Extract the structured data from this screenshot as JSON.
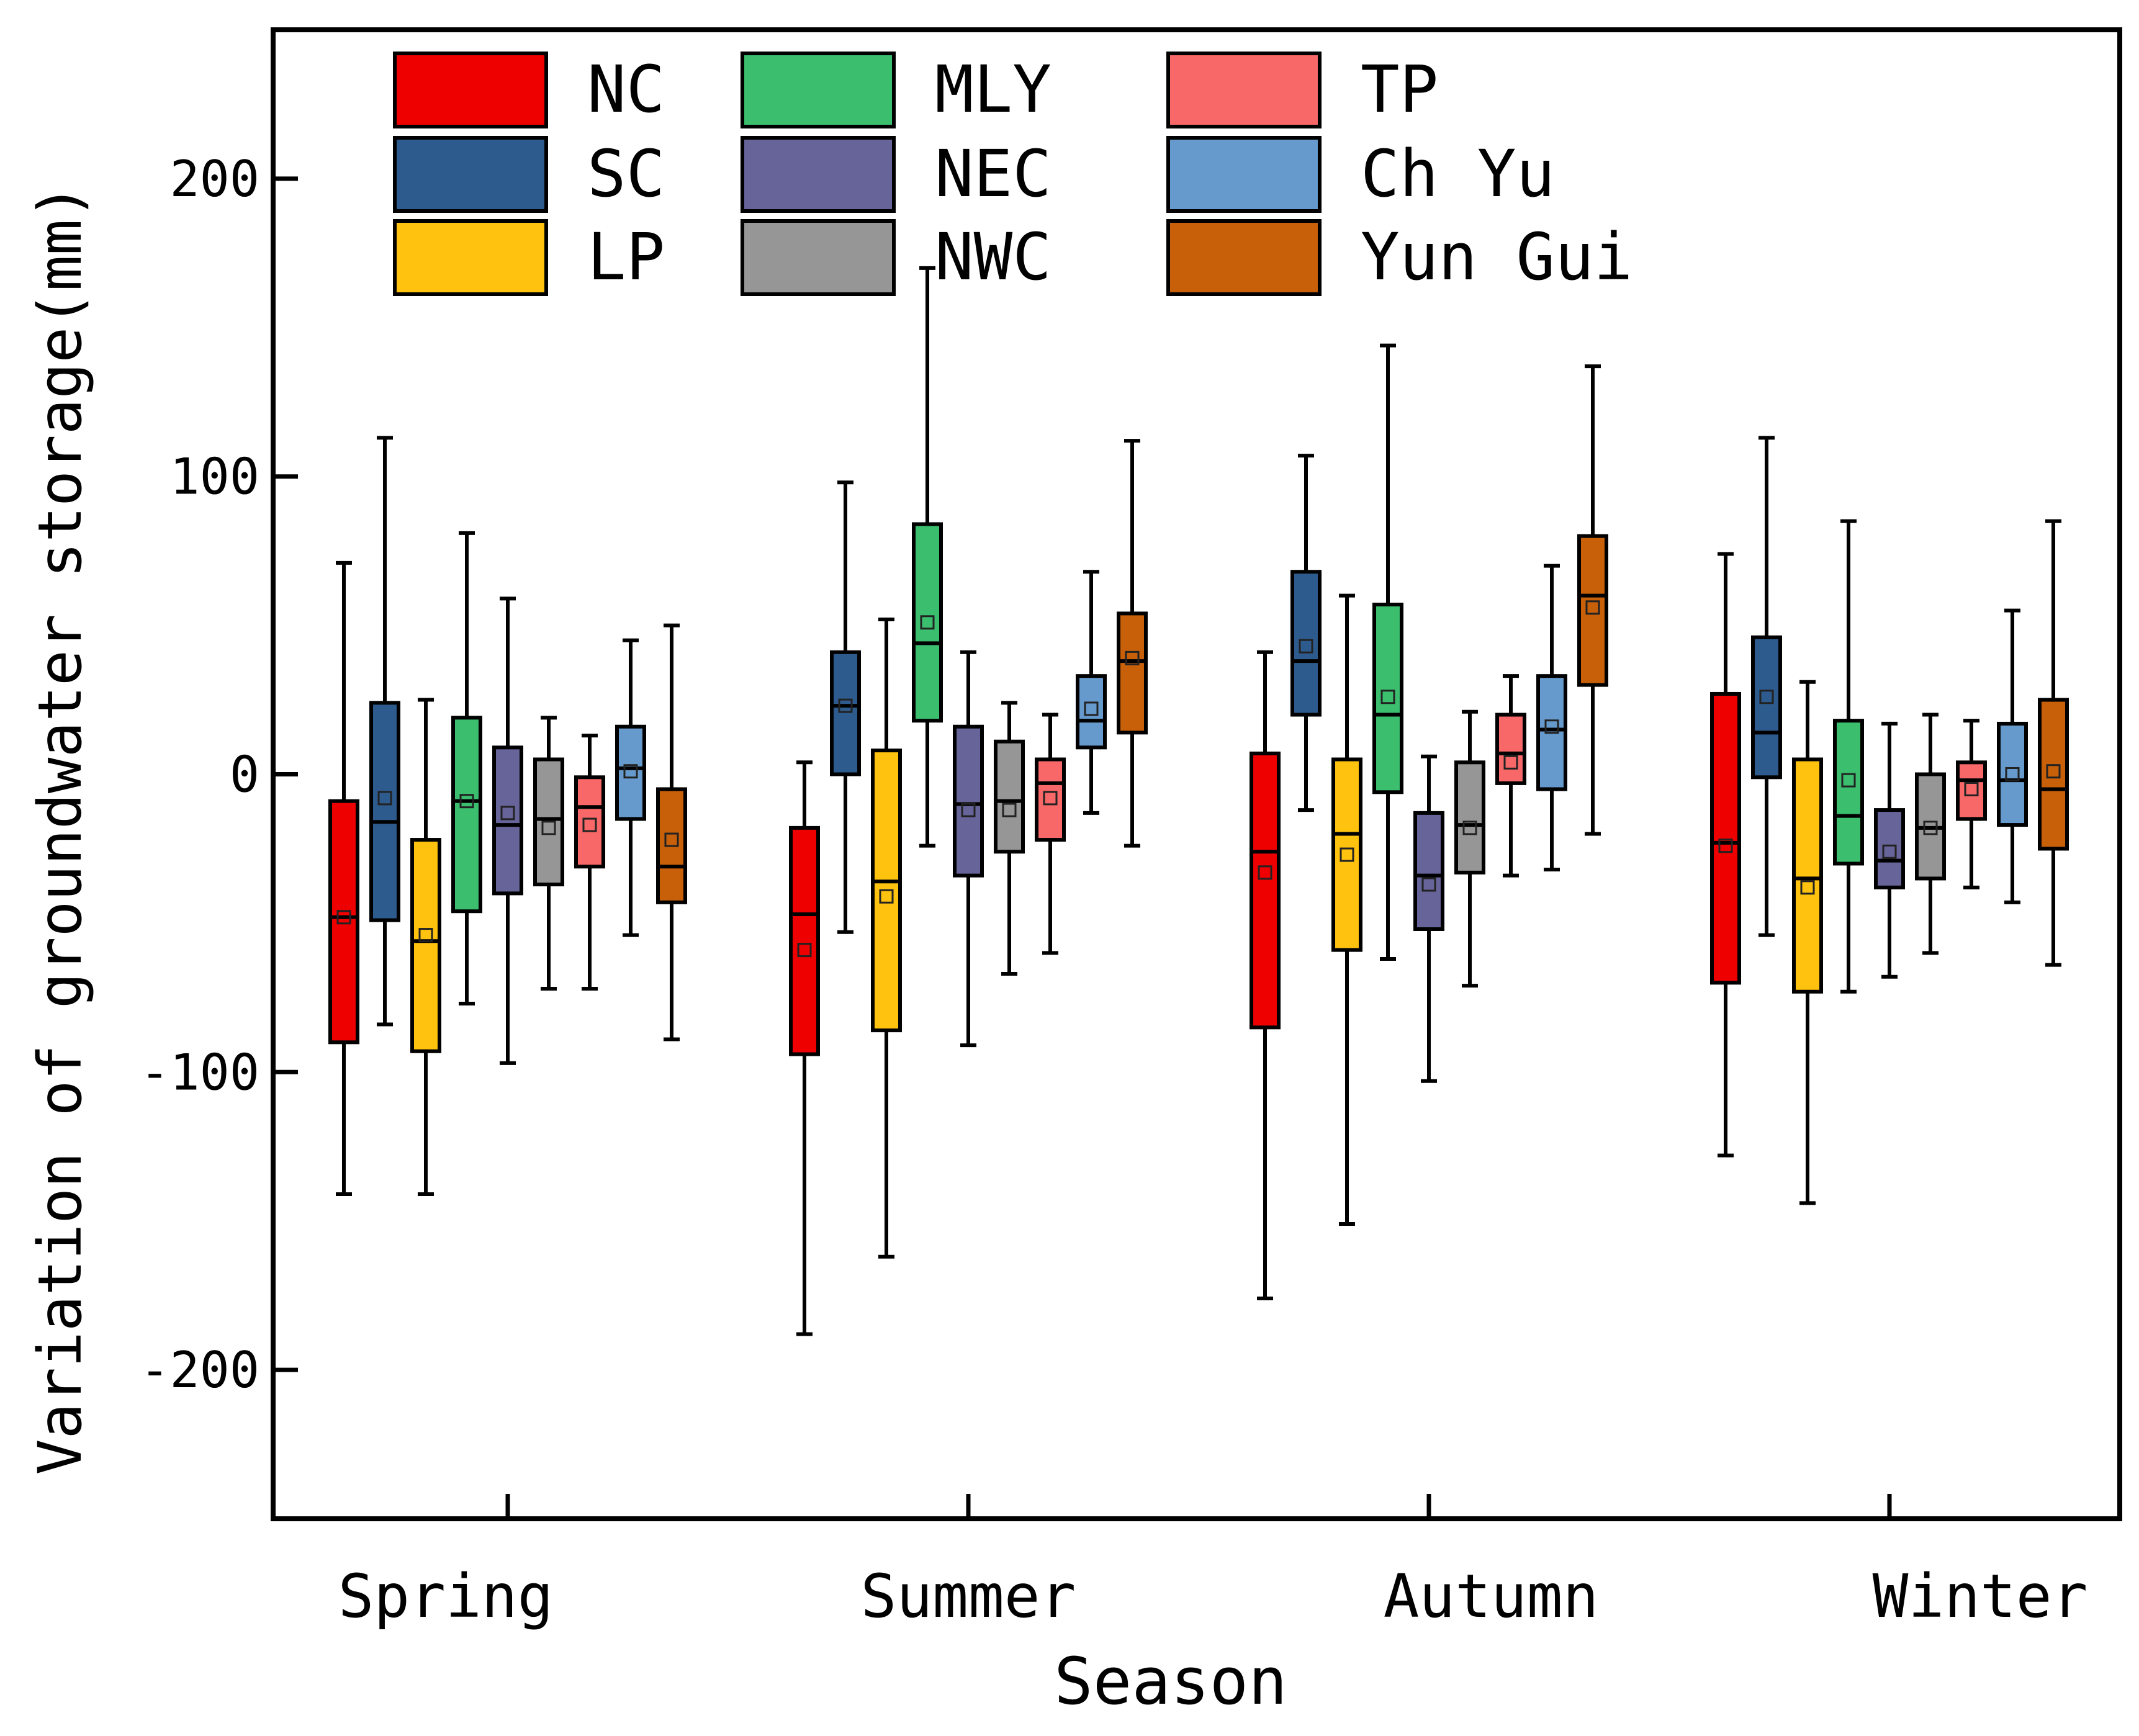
{
  "chart_data": {
    "type": "box",
    "title": "",
    "xlabel": "Season",
    "ylabel": "Variation of groundwater storage(mm)",
    "ylim": [
      -250,
      250
    ],
    "yticks": [
      -200,
      -100,
      0,
      100,
      200
    ],
    "ytick_labels": [
      "-200",
      "-100",
      "0",
      "100",
      "200"
    ],
    "categories": [
      "Spring",
      "Summer",
      "Autumn",
      "Winter"
    ],
    "legend_position": "top-left",
    "series": [
      {
        "name": "NC",
        "color": "#ee0000",
        "boxes": [
          {
            "min": -141,
            "q1": -90,
            "median": -48,
            "q3": -9,
            "max": 71,
            "mean": -48
          },
          {
            "min": -188,
            "q1": -94,
            "median": -47,
            "q3": -18,
            "max": 4,
            "mean": -59
          },
          {
            "min": -176,
            "q1": -85,
            "median": -26,
            "q3": 7,
            "max": 41,
            "mean": -33
          },
          {
            "min": -128,
            "q1": -70,
            "median": -23,
            "q3": 27,
            "max": 74,
            "mean": -24
          }
        ]
      },
      {
        "name": "SC",
        "color": "#2e5b8d",
        "boxes": [
          {
            "min": -84,
            "q1": -49,
            "median": -16,
            "q3": 24,
            "max": 113,
            "mean": -8
          },
          {
            "min": -53,
            "q1": 0,
            "median": 23,
            "q3": 41,
            "max": 98,
            "mean": 23
          },
          {
            "min": -12,
            "q1": 20,
            "median": 38,
            "q3": 68,
            "max": 107,
            "mean": 43
          },
          {
            "min": -54,
            "q1": -1,
            "median": 14,
            "q3": 46,
            "max": 113,
            "mean": 26
          }
        ]
      },
      {
        "name": "LP",
        "color": "#ffc20e",
        "boxes": [
          {
            "min": -141,
            "q1": -93,
            "median": -56,
            "q3": -22,
            "max": 25,
            "mean": -54
          },
          {
            "min": -162,
            "q1": -86,
            "median": -36,
            "q3": 8,
            "max": 52,
            "mean": -41
          },
          {
            "min": -151,
            "q1": -59,
            "median": -20,
            "q3": 5,
            "max": 60,
            "mean": -27
          },
          {
            "min": -144,
            "q1": -73,
            "median": -35,
            "q3": 5,
            "max": 31,
            "mean": -38
          }
        ]
      },
      {
        "name": "MLY",
        "color": "#3bbf6f",
        "boxes": [
          {
            "min": -77,
            "q1": -46,
            "median": -9,
            "q3": 19,
            "max": 81,
            "mean": -9
          },
          {
            "min": -24,
            "q1": 18,
            "median": 44,
            "q3": 84,
            "max": 170,
            "mean": 51
          },
          {
            "min": -62,
            "q1": -6,
            "median": 20,
            "q3": 57,
            "max": 144,
            "mean": 26
          },
          {
            "min": -73,
            "q1": -30,
            "median": -14,
            "q3": 18,
            "max": 85,
            "mean": -2
          }
        ]
      },
      {
        "name": "NEC",
        "color": "#676499",
        "boxes": [
          {
            "min": -97,
            "q1": -40,
            "median": -17,
            "q3": 9,
            "max": 59,
            "mean": -13
          },
          {
            "min": -91,
            "q1": -34,
            "median": -10,
            "q3": 16,
            "max": 41,
            "mean": -12
          },
          {
            "min": -103,
            "q1": -52,
            "median": -34,
            "q3": -13,
            "max": 6,
            "mean": -37
          },
          {
            "min": -68,
            "q1": -38,
            "median": -29,
            "q3": -12,
            "max": 17,
            "mean": -26
          }
        ]
      },
      {
        "name": "NWC",
        "color": "#969696",
        "boxes": [
          {
            "min": -72,
            "q1": -37,
            "median": -15,
            "q3": 5,
            "max": 19,
            "mean": -18
          },
          {
            "min": -67,
            "q1": -26,
            "median": -9,
            "q3": 11,
            "max": 24,
            "mean": -12
          },
          {
            "min": -71,
            "q1": -33,
            "median": -17,
            "q3": 4,
            "max": 21,
            "mean": -18
          },
          {
            "min": -60,
            "q1": -35,
            "median": -18,
            "q3": 0,
            "max": 20,
            "mean": -18
          }
        ]
      },
      {
        "name": "TP",
        "color": "#f86868",
        "boxes": [
          {
            "min": -72,
            "q1": -31,
            "median": -11,
            "q3": -1,
            "max": 13,
            "mean": -17
          },
          {
            "min": -60,
            "q1": -22,
            "median": -3,
            "q3": 5,
            "max": 20,
            "mean": -8
          },
          {
            "min": -34,
            "q1": -3,
            "median": 7,
            "q3": 20,
            "max": 33,
            "mean": 4
          },
          {
            "min": -38,
            "q1": -15,
            "median": -2,
            "q3": 4,
            "max": 18,
            "mean": -5
          }
        ]
      },
      {
        "name": "Ch Yu",
        "color": "#6699cc",
        "boxes": [
          {
            "min": -54,
            "q1": -15,
            "median": 2,
            "q3": 16,
            "max": 45,
            "mean": 1
          },
          {
            "min": -13,
            "q1": 9,
            "median": 18,
            "q3": 33,
            "max": 68,
            "mean": 22
          },
          {
            "min": -32,
            "q1": -5,
            "median": 15,
            "q3": 33,
            "max": 70,
            "mean": 16
          },
          {
            "min": -43,
            "q1": -17,
            "median": -2,
            "q3": 17,
            "max": 55,
            "mean": 0
          }
        ]
      },
      {
        "name": "Yun Gui",
        "color": "#c8600a",
        "boxes": [
          {
            "min": -89,
            "q1": -43,
            "median": -31,
            "q3": -5,
            "max": 50,
            "mean": -22
          },
          {
            "min": -24,
            "q1": 14,
            "median": 38,
            "q3": 54,
            "max": 112,
            "mean": 39
          },
          {
            "min": -20,
            "q1": 30,
            "median": 60,
            "q3": 80,
            "max": 137,
            "mean": 56
          },
          {
            "min": -64,
            "q1": -25,
            "median": -5,
            "q3": 25,
            "max": 85,
            "mean": 1
          }
        ]
      }
    ]
  }
}
